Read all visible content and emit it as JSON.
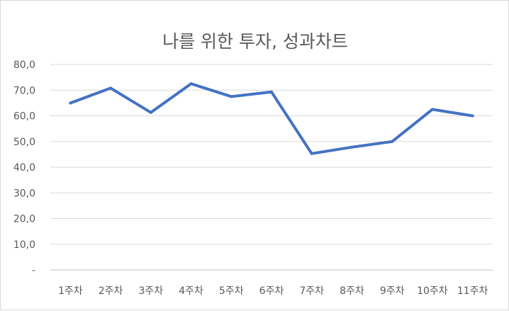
{
  "chart_data": {
    "type": "line",
    "title": "나를 위한 투자, 성과차트",
    "categories": [
      "1주차",
      "2주차",
      "3주차",
      "4주차",
      "5주차",
      "6주차",
      "7주차",
      "8주차",
      "9주차",
      "10주차",
      "11주차"
    ],
    "series": [
      {
        "values": [
          65.0,
          70.8,
          61.3,
          72.5,
          67.5,
          69.3,
          45.3,
          47.8,
          50.0,
          62.5,
          60.0
        ]
      }
    ],
    "y_ticks": [
      "-",
      "10,0",
      "20,0",
      "30,0",
      "40,0",
      "50,0",
      "60,0",
      "70,0",
      "80,0"
    ],
    "ylim": [
      0,
      80
    ],
    "grid": true,
    "legend": "none",
    "colors": {
      "line": "#4472c4",
      "grid": "#d9d9d9",
      "axis": "#bfbfbf",
      "text": "#595959"
    }
  }
}
